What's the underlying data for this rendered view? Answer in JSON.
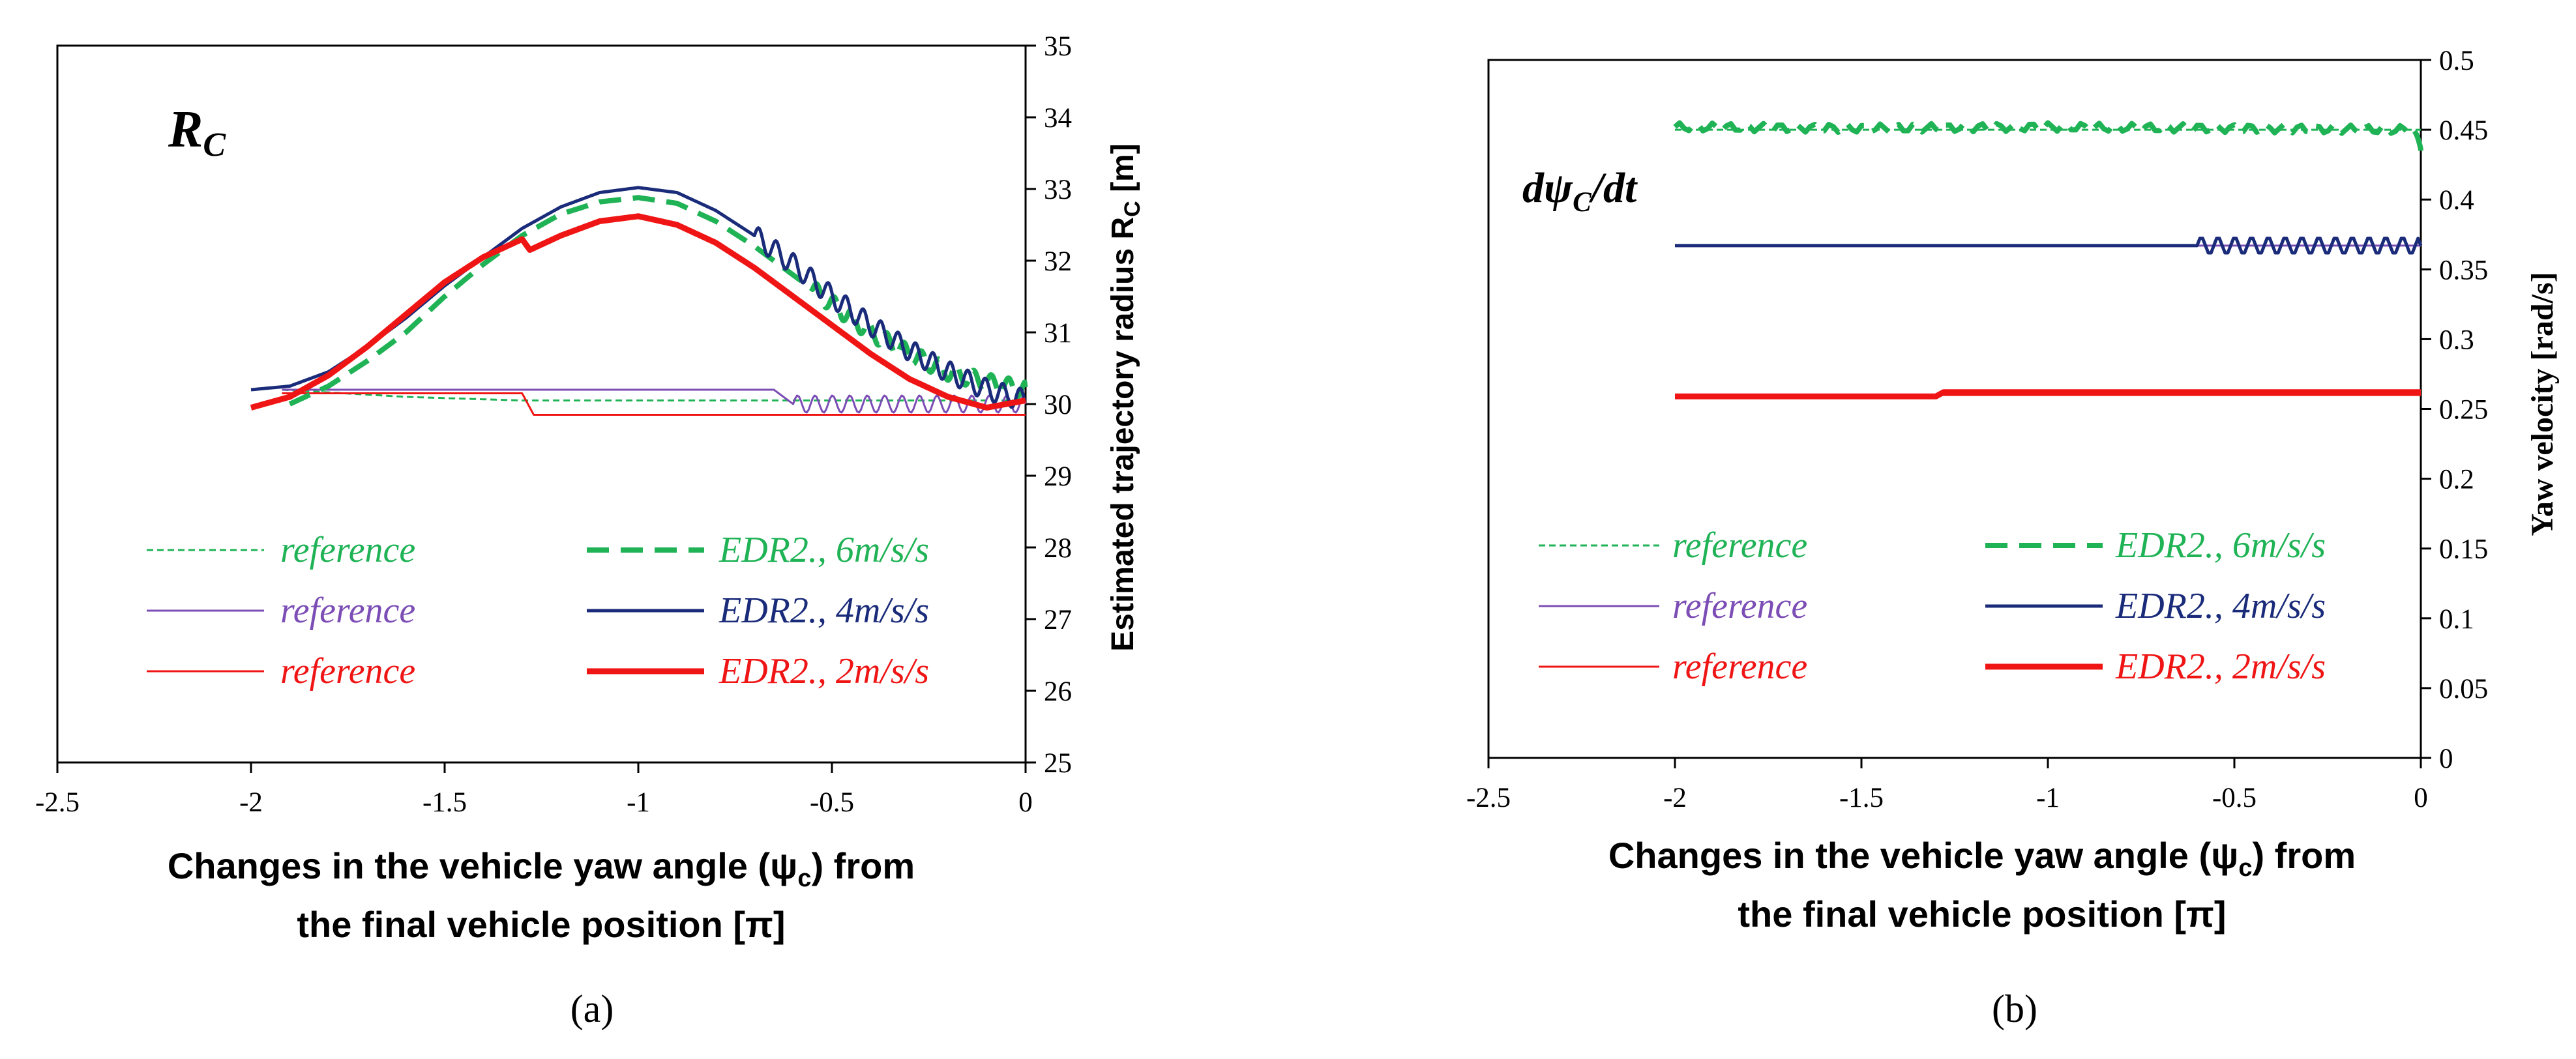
{
  "colors": {
    "green": "#1fb356",
    "purple": "#7b4db5",
    "navy": "#1a2b7a",
    "red": "#f01515",
    "axis": "#000000"
  },
  "chart_data": [
    {
      "type": "line",
      "panel_label": "(a)",
      "corner_label": "R",
      "corner_label_sub": "C",
      "xlabel_line1": "Changes in the vehicle yaw angle (ψ",
      "xlabel_sub": "c",
      "xlabel_line1_end": ") from",
      "xlabel_line2": "the final vehicle position  [π]",
      "ylabel": "Estimated trajectory radius R",
      "ylabel_sub": "C",
      "ylabel_unit": " [m]",
      "xlim": [
        -2.5,
        0
      ],
      "ylim": [
        25,
        35
      ],
      "xticks": [
        -2.5,
        -2,
        -1.5,
        -1,
        -0.5,
        0
      ],
      "xtick_labels": [
        "-2.5",
        "-2",
        "-1.5",
        "-1",
        "-0.5",
        "0"
      ],
      "yticks": [
        25,
        26,
        27,
        28,
        29,
        30,
        31,
        32,
        33,
        34,
        35
      ],
      "ytick_labels": [
        "25",
        "26",
        "27",
        "28",
        "29",
        "30",
        "31",
        "32",
        "33",
        "34",
        "35"
      ],
      "yaxis_side": "right",
      "legend": [
        {
          "label": "reference",
          "color": "green",
          "style": "dotted"
        },
        {
          "label": "EDR2., 6m/s/s",
          "color": "green",
          "style": "dashed"
        },
        {
          "label": "reference",
          "color": "purple",
          "style": "thin"
        },
        {
          "label": "EDR2., 4m/s/s",
          "color": "navy",
          "style": "solid"
        },
        {
          "label": "reference",
          "color": "red",
          "style": "thin"
        },
        {
          "label": "EDR2., 2m/s/s",
          "color": "red",
          "style": "thick"
        }
      ],
      "series": [
        {
          "name": "reference 6m/s/s",
          "color": "green",
          "style": "dotted",
          "x": [
            -1.92,
            -1.6,
            -1.3,
            -1.0,
            -0.7,
            -0.4,
            -0.1,
            0
          ],
          "y": [
            30.2,
            30.1,
            30.05,
            30.05,
            30.05,
            30.05,
            30.05,
            30.05
          ]
        },
        {
          "name": "reference 4m/s/s",
          "color": "purple",
          "style": "thin",
          "x": [
            -1.92,
            -1.6,
            -1.3,
            -1.0,
            -0.65,
            -0.6,
            -0.4,
            -0.2,
            0
          ],
          "y": [
            30.2,
            30.2,
            30.2,
            30.2,
            30.2,
            30.0,
            30.0,
            30.0,
            30.0
          ],
          "oscillate_from": -0.6,
          "oscillation_amp": 0.12
        },
        {
          "name": "reference 2m/s/s",
          "color": "red",
          "style": "thin",
          "x": [
            -1.92,
            -1.6,
            -1.3,
            -1.27,
            -1.0,
            -0.6,
            -0.3,
            0
          ],
          "y": [
            30.15,
            30.15,
            30.15,
            29.85,
            29.85,
            29.85,
            29.85,
            29.85
          ]
        },
        {
          "name": "EDR2., 6m/s/s",
          "color": "green",
          "style": "dashed",
          "x": [
            -1.9,
            -1.8,
            -1.7,
            -1.6,
            -1.5,
            -1.4,
            -1.3,
            -1.2,
            -1.1,
            -1.0,
            -0.9,
            -0.8,
            -0.7,
            -0.6,
            -0.5,
            -0.4,
            -0.3,
            -0.2,
            -0.1,
            0
          ],
          "y": [
            30.0,
            30.25,
            30.6,
            31.0,
            31.5,
            31.95,
            32.35,
            32.65,
            32.82,
            32.88,
            32.8,
            32.55,
            32.2,
            31.8,
            31.4,
            31.0,
            30.7,
            30.45,
            30.3,
            30.2
          ],
          "oscillate_from": -0.55,
          "oscillation_amp": 0.12
        },
        {
          "name": "EDR2., 4m/s/s",
          "color": "navy",
          "style": "solid",
          "x": [
            -2.0,
            -1.9,
            -1.8,
            -1.7,
            -1.6,
            -1.5,
            -1.4,
            -1.3,
            -1.2,
            -1.1,
            -1.0,
            -0.9,
            -0.8,
            -0.7,
            -0.6,
            -0.5,
            -0.4,
            -0.3,
            -0.2,
            -0.1,
            0
          ],
          "y": [
            30.2,
            30.25,
            30.45,
            30.8,
            31.2,
            31.65,
            32.05,
            32.45,
            32.75,
            32.95,
            33.02,
            32.95,
            32.7,
            32.35,
            31.95,
            31.5,
            31.1,
            30.75,
            30.45,
            30.2,
            30.05
          ],
          "oscillate_from": -0.7,
          "oscillation_amp": 0.15
        },
        {
          "name": "EDR2., 2m/s/s",
          "color": "red",
          "style": "thick",
          "x": [
            -2.0,
            -1.9,
            -1.8,
            -1.7,
            -1.6,
            -1.5,
            -1.4,
            -1.3,
            -1.28,
            -1.2,
            -1.1,
            -1.0,
            -0.9,
            -0.8,
            -0.7,
            -0.6,
            -0.5,
            -0.4,
            -0.3,
            -0.2,
            -0.1,
            0
          ],
          "y": [
            29.95,
            30.1,
            30.4,
            30.8,
            31.25,
            31.7,
            32.05,
            32.3,
            32.15,
            32.35,
            32.55,
            32.62,
            32.5,
            32.25,
            31.9,
            31.5,
            31.1,
            30.7,
            30.35,
            30.1,
            29.95,
            30.05
          ]
        }
      ]
    },
    {
      "type": "line",
      "panel_label": "(b)",
      "corner_label": "dψ",
      "corner_label_sub": "C",
      "corner_label_end": "/dt",
      "xlabel_line1": "Changes in the vehicle yaw angle (ψ",
      "xlabel_sub": "c",
      "xlabel_line1_end": ") from",
      "xlabel_line2": "the final vehicle position  [π]",
      "ylabel": "Yaw velocity",
      "ylabel_unit": "[rad/s]",
      "xlim": [
        -2.5,
        0
      ],
      "ylim": [
        0,
        0.5
      ],
      "xticks": [
        -2.5,
        -2,
        -1.5,
        -1,
        -0.5,
        0
      ],
      "xtick_labels": [
        "-2.5",
        "-2",
        "-1.5",
        "-1",
        "-0.5",
        "0"
      ],
      "yticks": [
        0,
        0.05,
        0.1,
        0.15,
        0.2,
        0.25,
        0.3,
        0.35,
        0.4,
        0.45,
        0.5
      ],
      "ytick_labels": [
        "0",
        "0.05",
        "0.1",
        "0.15",
        "0.2",
        "0.25",
        "0.3",
        "0.35",
        "0.4",
        "0.45",
        "0.5"
      ],
      "yaxis_side": "right",
      "legend": [
        {
          "label": "reference",
          "color": "green",
          "style": "dotted"
        },
        {
          "label": "EDR2., 6m/s/s",
          "color": "green",
          "style": "dashed"
        },
        {
          "label": "reference",
          "color": "purple",
          "style": "thin"
        },
        {
          "label": "EDR2., 4m/s/s",
          "color": "navy",
          "style": "solid"
        },
        {
          "label": "reference",
          "color": "red",
          "style": "thin"
        },
        {
          "label": "EDR2., 2m/s/s",
          "color": "red",
          "style": "thick"
        }
      ],
      "series": [
        {
          "name": "reference 6m/s/s",
          "color": "green",
          "style": "dotted",
          "x": [
            -2.0,
            -1.5,
            -1.0,
            -0.5,
            0
          ],
          "y": [
            0.45,
            0.45,
            0.45,
            0.45,
            0.45
          ]
        },
        {
          "name": "EDR2., 6m/s/s",
          "color": "green",
          "style": "dashed",
          "x": [
            -2.0,
            -1.5,
            -1.0,
            -0.5,
            -0.02,
            0
          ],
          "y": [
            0.452,
            0.451,
            0.452,
            0.451,
            0.45,
            0.435
          ],
          "oscillate_from": -2.0,
          "oscillation_amp": 0.003
        },
        {
          "name": "reference 4m/s/s",
          "color": "purple",
          "style": "thin",
          "x": [
            -2.0,
            -1.5,
            -1.0,
            -0.5,
            0
          ],
          "y": [
            0.367,
            0.367,
            0.367,
            0.367,
            0.367
          ]
        },
        {
          "name": "EDR2., 4m/s/s",
          "color": "navy",
          "style": "solid",
          "x": [
            -2.0,
            -1.5,
            -1.0,
            -0.6,
            -0.3,
            0
          ],
          "y": [
            0.367,
            0.367,
            0.367,
            0.367,
            0.367,
            0.367
          ],
          "oscillate_from": -0.6,
          "oscillation_amp": 0.006
        },
        {
          "name": "reference 2m/s/s",
          "color": "red",
          "style": "thin",
          "x": [
            -2.0,
            -1.5,
            -1.0,
            -0.5,
            0
          ],
          "y": [
            0.26,
            0.26,
            0.26,
            0.26,
            0.26
          ]
        },
        {
          "name": "EDR2., 2m/s/s",
          "color": "red",
          "style": "thick",
          "x": [
            -2.0,
            -1.6,
            -1.3,
            -1.28,
            -1.0,
            -0.5,
            0
          ],
          "y": [
            0.259,
            0.259,
            0.259,
            0.262,
            0.262,
            0.262,
            0.262
          ]
        }
      ]
    }
  ]
}
